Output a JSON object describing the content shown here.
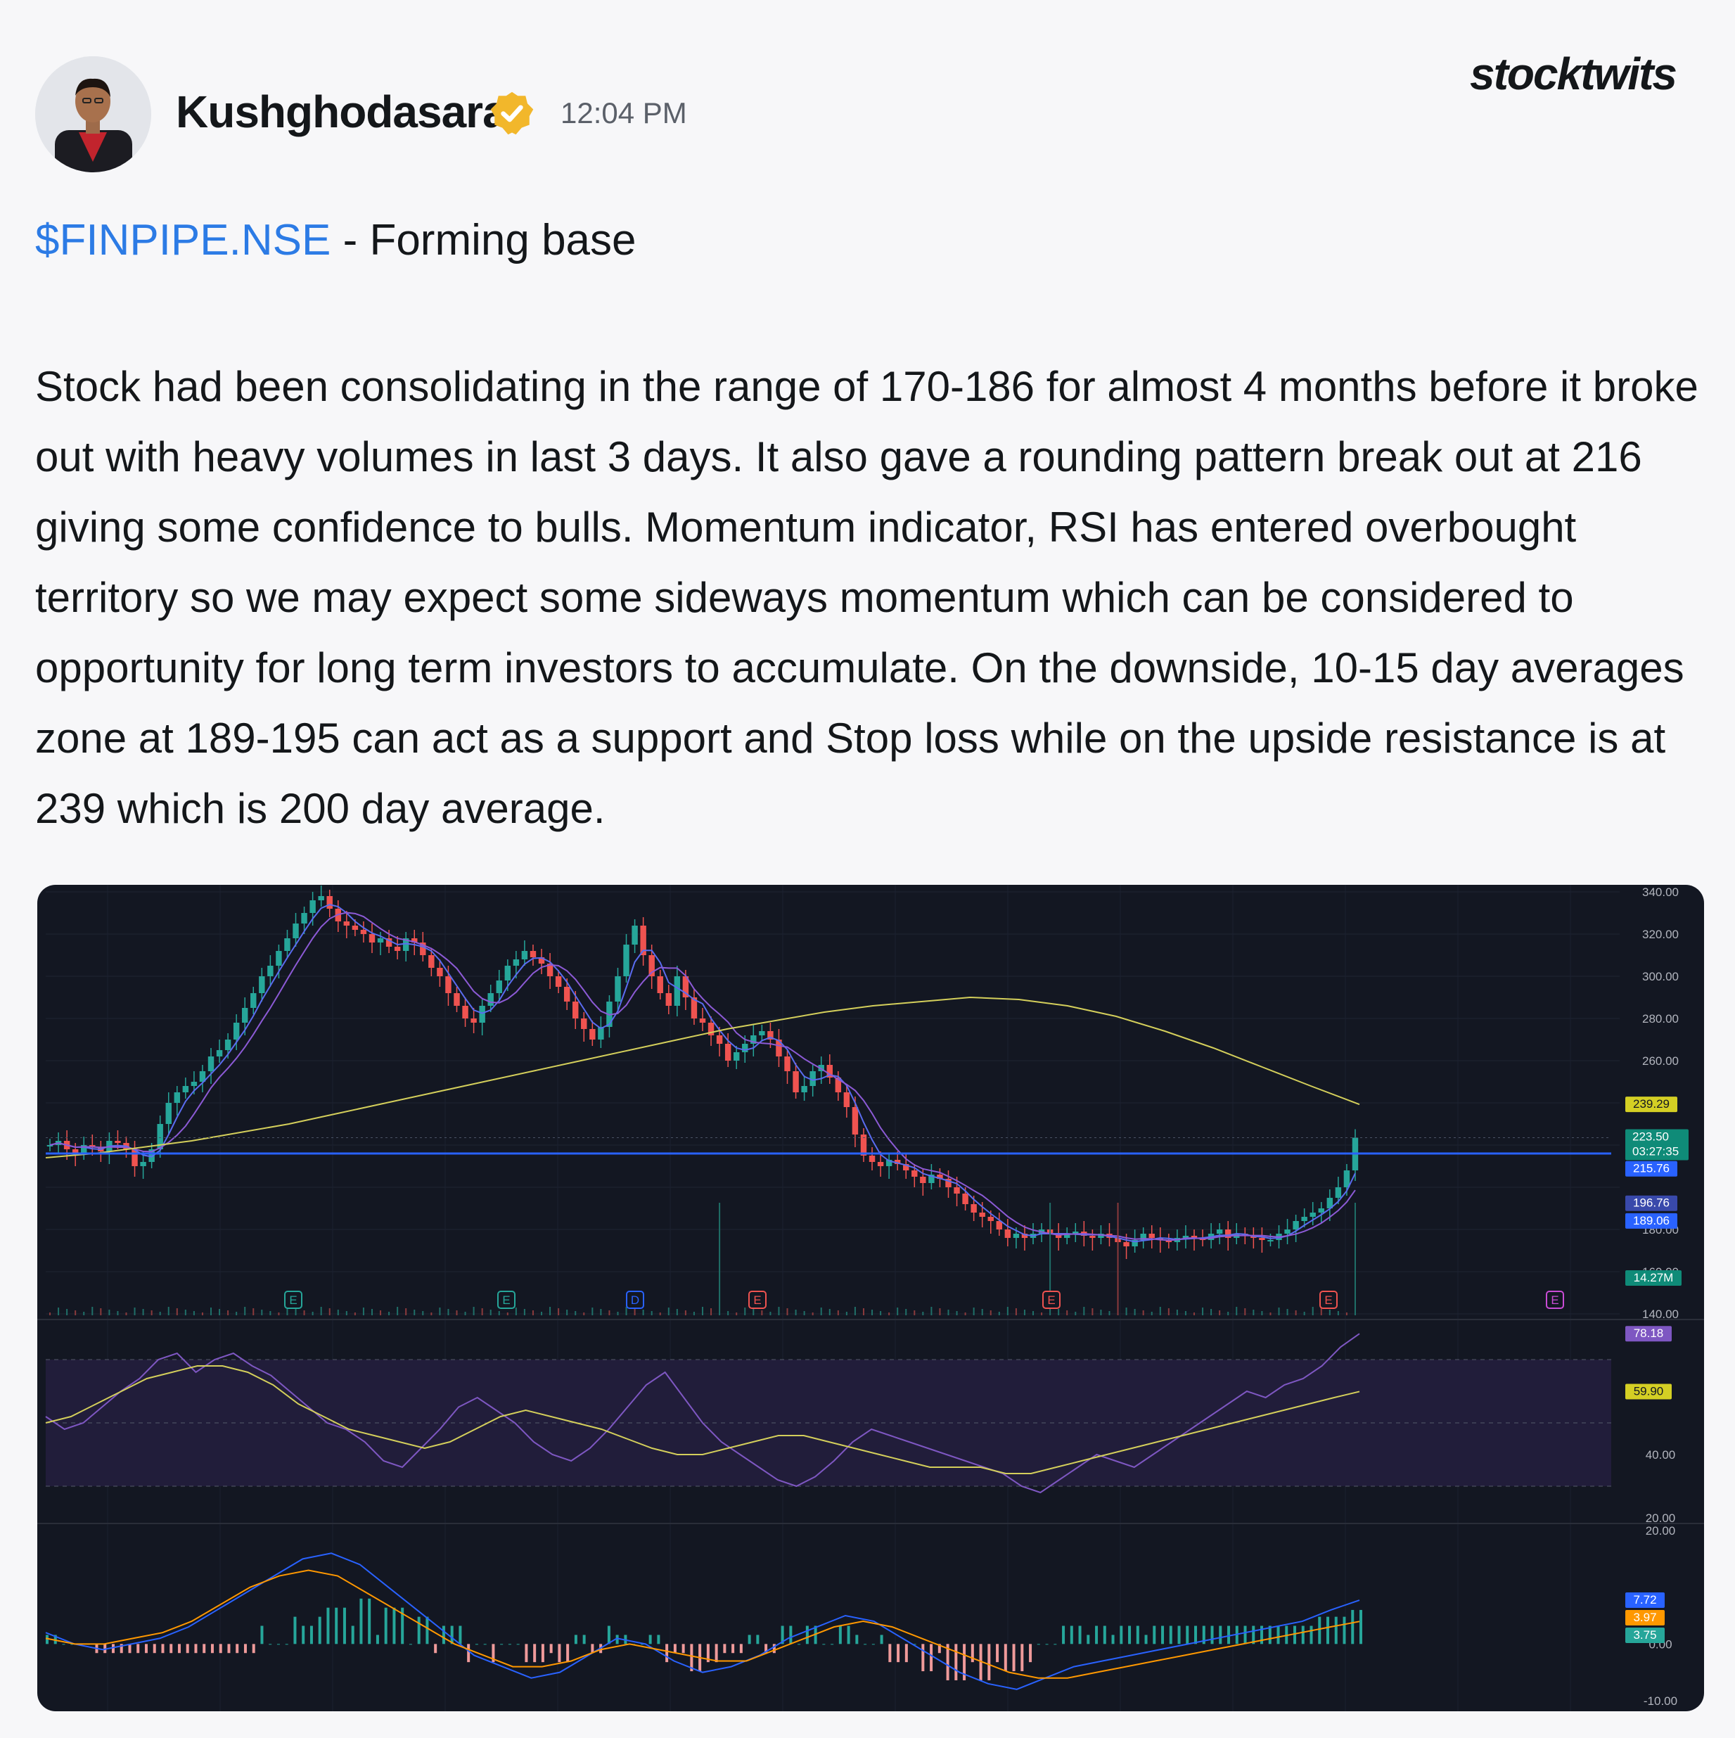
{
  "post": {
    "username": "Kushghodasara",
    "timestamp": "12:04 PM",
    "brand": "stocktwits",
    "ticker": "$FINPIPE.NSE",
    "title_suffix": " - Forming base",
    "body": "Stock had been consolidating in the range of 170-186 for almost 4 months before it broke out with heavy volumes in last 3 days. It also gave a rounding pattern break out at 216 giving some confidence to bulls. Momentum indicator, RSI has entered overbought territory so we may expect some sideways momentum which can be considered to opportunity for long term investors to accumulate. On the downside, 10-15 day averages zone at 189-195 can act as a support and Stop loss while on the upside resistance is at 239 which is 200 day average."
  },
  "icons": {
    "verified": "verified-badge-icon",
    "avatar": "user-avatar"
  },
  "colors": {
    "ticker": "#2c7be5",
    "verified_badge": "#f2b72b",
    "chart_bg": "#131722",
    "up_candle": "#26a69a",
    "down_candle": "#ef5350",
    "ma200": "#d4cf5b",
    "ma_short1": "#5a6cf0",
    "ma_short2": "#8c5ad6",
    "horizontal_line": "#2962ff",
    "rsi_line": "#7e57c2",
    "rsi_ma": "#d4cf5b",
    "macd_line": "#2962ff",
    "signal_line": "#ff9800"
  },
  "chart_data": [
    {
      "type": "candlestick",
      "panel": "price",
      "ylim": [
        140,
        340
      ],
      "y_ticks": [
        "340.00",
        "320.00",
        "300.00",
        "280.00",
        "260.00",
        "180.00",
        "160.00",
        "140.00"
      ],
      "series": [
        {
          "values": [
            220,
            222,
            218,
            216,
            220,
            219,
            217,
            222,
            221,
            218,
            210,
            212,
            218,
            230,
            240,
            245,
            248,
            250,
            255,
            262,
            265,
            270,
            278,
            285,
            292,
            300,
            305,
            312,
            318,
            325,
            330,
            336,
            338,
            332,
            326,
            324,
            322,
            320,
            316,
            318,
            314,
            312,
            318,
            316,
            310,
            304,
            300,
            292,
            286,
            280,
            278,
            286,
            292,
            298,
            305,
            308,
            312,
            309,
            306,
            300,
            295,
            288,
            280,
            275,
            270,
            276,
            288,
            300,
            315,
            324,
            310,
            300,
            292,
            286,
            300,
            290,
            280,
            278,
            272,
            268,
            260,
            264,
            268,
            272,
            274,
            270,
            262,
            255,
            245,
            248,
            255,
            258,
            252,
            245,
            238,
            225,
            215,
            212,
            210,
            213,
            211,
            208,
            205,
            202,
            206,
            204,
            200,
            197,
            192,
            188,
            186,
            184,
            180,
            176,
            178,
            176,
            178,
            180,
            178,
            176,
            178,
            179,
            177,
            176,
            178,
            176,
            174,
            172,
            175,
            178,
            176,
            175,
            174,
            176,
            177,
            176,
            175,
            178,
            180,
            176,
            178,
            177,
            176,
            175,
            175,
            178,
            180,
            184,
            186,
            188,
            190,
            195,
            200,
            208,
            223.5
          ]
        },
        {
          "name": "MA 200",
          "values": [
            214,
            216,
            219,
            222,
            226,
            230,
            235,
            240,
            245,
            250,
            255,
            260,
            265,
            270,
            275,
            279,
            283,
            286,
            288,
            290,
            289,
            286,
            281,
            274,
            266,
            257,
            248,
            239.29
          ]
        }
      ],
      "labels": {
        "ma200": "239.29",
        "price": "223.50",
        "countdown": "03:27:35",
        "ma_a": "215.76",
        "ma_b": "196.76",
        "ma_c": "189.06",
        "volume": "14.27M"
      },
      "event_markers": [
        "E",
        "E",
        "D",
        "E",
        "E",
        "E",
        "E"
      ]
    },
    {
      "type": "line",
      "panel": "rsi",
      "ylim": [
        20,
        80
      ],
      "y_ticks": [
        "40.00",
        "20.00"
      ],
      "series": [
        {
          "name": "RSI",
          "values": [
            52,
            48,
            50,
            55,
            60,
            64,
            70,
            72,
            66,
            70,
            72,
            68,
            65,
            60,
            55,
            50,
            48,
            44,
            38,
            36,
            42,
            48,
            55,
            58,
            54,
            50,
            44,
            40,
            38,
            42,
            48,
            55,
            62,
            66,
            58,
            50,
            44,
            40,
            36,
            32,
            30,
            33,
            38,
            44,
            48,
            46,
            44,
            42,
            40,
            38,
            36,
            34,
            30,
            28,
            32,
            36,
            40,
            38,
            36,
            40,
            44,
            48,
            52,
            56,
            60,
            58,
            62,
            64,
            68,
            74,
            78.18
          ]
        },
        {
          "name": "RSI MA",
          "values": [
            50,
            52,
            56,
            60,
            64,
            66,
            68,
            68,
            66,
            62,
            56,
            52,
            48,
            46,
            44,
            42,
            44,
            48,
            52,
            54,
            52,
            50,
            48,
            45,
            42,
            40,
            40,
            42,
            44,
            46,
            46,
            44,
            42,
            40,
            38,
            36,
            36,
            36,
            34,
            34,
            36,
            38,
            40,
            42,
            44,
            46,
            48,
            50,
            52,
            54,
            56,
            58,
            59.9
          ]
        }
      ],
      "labels": {
        "rsi": "78.18",
        "rsi_ma": "59.90"
      }
    },
    {
      "type": "bar",
      "panel": "macd",
      "ylim": [
        -10,
        20
      ],
      "y_ticks": [
        "20.00",
        "0.00",
        "-10.00"
      ],
      "series": [
        {
          "name": "MACD",
          "values": [
            2,
            0,
            -1,
            0,
            1,
            3,
            6,
            9,
            12,
            15,
            16,
            14,
            10,
            6,
            2,
            -2,
            -4,
            -6,
            -5,
            -2,
            1,
            0,
            -3,
            -5,
            -4,
            -2,
            1,
            3,
            5,
            4,
            1,
            -2,
            -5,
            -7,
            -8,
            -6,
            -4,
            -3,
            -2,
            -1,
            0,
            1,
            2,
            3,
            4,
            6,
            7.72
          ]
        },
        {
          "name": "Signal",
          "values": [
            1,
            0,
            0,
            1,
            2,
            4,
            7,
            10,
            12,
            13,
            12,
            9,
            6,
            3,
            0,
            -2,
            -4,
            -4,
            -3,
            -1,
            0,
            -1,
            -2,
            -3,
            -3,
            -1,
            1,
            3,
            4,
            3,
            1,
            -1,
            -3,
            -5,
            -6,
            -6,
            -5,
            -4,
            -3,
            -2,
            -1,
            0,
            1,
            2,
            3,
            3.97
          ]
        }
      ],
      "labels": {
        "macd": "7.72",
        "signal": "3.97",
        "hist": "3.75"
      }
    }
  ]
}
